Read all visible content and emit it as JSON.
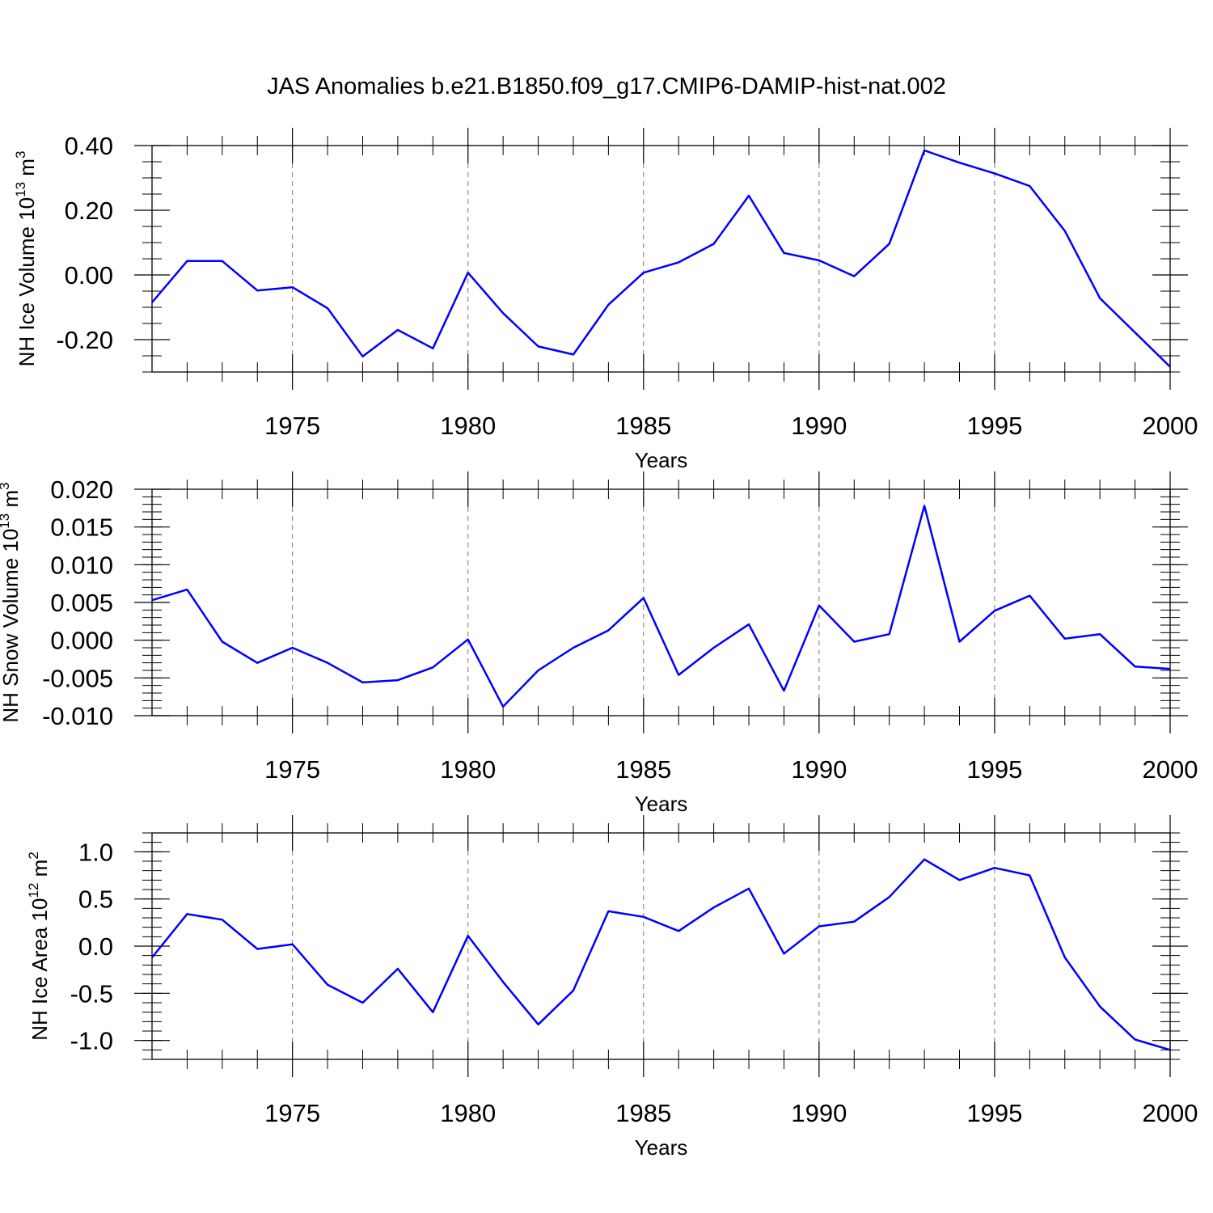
{
  "title": "JAS Anomalies b.e21.B1850.f09_g17.CMIP6-DAMIP-hist-nat.002",
  "line_color": "#0000ff",
  "chart_data": [
    {
      "type": "line",
      "ylabel": "NH Ice Volume 10",
      "ylabel_sup": "13",
      "ylabel_unit": "m",
      "ylabel_unit_sup": "3",
      "xlabel": "Years",
      "xlim": [
        1971,
        2000
      ],
      "ylim": [
        -0.3,
        0.4
      ],
      "y_ticks": [
        {
          "v": 0.4,
          "label": "0.40"
        },
        {
          "v": 0.2,
          "label": "0.20"
        },
        {
          "v": 0.0,
          "label": "0.00"
        },
        {
          "v": -0.2,
          "label": "-0.20"
        }
      ],
      "x_ticks": [
        {
          "v": 1975,
          "label": "1975"
        },
        {
          "v": 1980,
          "label": "1980"
        },
        {
          "v": 1985,
          "label": "1985"
        },
        {
          "v": 1990,
          "label": "1990"
        },
        {
          "v": 1995,
          "label": "1995"
        },
        {
          "v": 2000,
          "label": "2000"
        }
      ],
      "grid": "vertical dashed at major x ticks",
      "x": [
        1971,
        1972,
        1973,
        1974,
        1975,
        1976,
        1977,
        1978,
        1979,
        1980,
        1981,
        1982,
        1983,
        1984,
        1985,
        1986,
        1987,
        1988,
        1989,
        1990,
        1991,
        1992,
        1993,
        1994,
        1995,
        1996,
        1997,
        1998,
        1999,
        2000
      ],
      "y": [
        -0.085,
        0.043,
        0.043,
        -0.048,
        -0.038,
        -0.103,
        -0.252,
        -0.17,
        -0.227,
        0.007,
        -0.118,
        -0.221,
        -0.246,
        -0.092,
        0.007,
        0.039,
        0.096,
        0.245,
        0.068,
        0.045,
        -0.004,
        0.096,
        0.385,
        0.347,
        0.314,
        0.275,
        0.136,
        -0.072,
        -0.178,
        -0.284
      ]
    },
    {
      "type": "line",
      "ylabel": "NH Snow Volume 10",
      "ylabel_sup": "13",
      "ylabel_unit": "m",
      "ylabel_unit_sup": "3",
      "xlabel": "Years",
      "xlim": [
        1971,
        2000
      ],
      "ylim": [
        -0.01,
        0.02
      ],
      "y_ticks": [
        {
          "v": 0.02,
          "label": "0.020"
        },
        {
          "v": 0.015,
          "label": "0.015"
        },
        {
          "v": 0.01,
          "label": "0.010"
        },
        {
          "v": 0.005,
          "label": "0.005"
        },
        {
          "v": 0.0,
          "label": "0.000"
        },
        {
          "v": -0.005,
          "label": "-0.005"
        },
        {
          "v": -0.01,
          "label": "-0.010"
        }
      ],
      "x_ticks": [
        {
          "v": 1975,
          "label": "1975"
        },
        {
          "v": 1980,
          "label": "1980"
        },
        {
          "v": 1985,
          "label": "1985"
        },
        {
          "v": 1990,
          "label": "1990"
        },
        {
          "v": 1995,
          "label": "1995"
        },
        {
          "v": 2000,
          "label": "2000"
        }
      ],
      "grid": "vertical dashed at major x ticks",
      "x": [
        1971,
        1972,
        1973,
        1974,
        1975,
        1976,
        1977,
        1978,
        1979,
        1980,
        1981,
        1982,
        1983,
        1984,
        1985,
        1986,
        1987,
        1988,
        1989,
        1990,
        1991,
        1992,
        1993,
        1994,
        1995,
        1996,
        1997,
        1998,
        1999,
        2000
      ],
      "y": [
        0.0053,
        0.0067,
        -0.0002,
        -0.003,
        -0.001,
        -0.003,
        -0.0056,
        -0.0053,
        -0.0036,
        0.0001,
        -0.0088,
        -0.004,
        -0.001,
        0.0013,
        0.0056,
        -0.0046,
        -0.001,
        0.0021,
        -0.0067,
        0.0046,
        -0.0002,
        0.0008,
        0.0178,
        -0.0002,
        0.0039,
        0.0059,
        0.0002,
        0.0008,
        -0.0035,
        -0.0038
      ]
    },
    {
      "type": "line",
      "ylabel": "NH Ice Area 10",
      "ylabel_sup": "12",
      "ylabel_unit": "m",
      "ylabel_unit_sup": "2",
      "xlabel": "Years",
      "xlim": [
        1971,
        2000
      ],
      "ylim": [
        -1.2,
        1.2
      ],
      "y_ticks": [
        {
          "v": 1.0,
          "label": "1.0"
        },
        {
          "v": 0.5,
          "label": "0.5"
        },
        {
          "v": 0.0,
          "label": "0.0"
        },
        {
          "v": -0.5,
          "label": "-0.5"
        },
        {
          "v": -1.0,
          "label": "-1.0"
        }
      ],
      "x_ticks": [
        {
          "v": 1975,
          "label": "1975"
        },
        {
          "v": 1980,
          "label": "1980"
        },
        {
          "v": 1985,
          "label": "1985"
        },
        {
          "v": 1990,
          "label": "1990"
        },
        {
          "v": 1995,
          "label": "1995"
        },
        {
          "v": 2000,
          "label": "2000"
        }
      ],
      "grid": "vertical dashed at major x ticks",
      "x": [
        1971,
        1972,
        1973,
        1974,
        1975,
        1976,
        1977,
        1978,
        1979,
        1980,
        1981,
        1982,
        1983,
        1984,
        1985,
        1986,
        1987,
        1988,
        1989,
        1990,
        1991,
        1992,
        1993,
        1994,
        1995,
        1996,
        1997,
        1998,
        1999,
        2000
      ],
      "y": [
        -0.12,
        0.34,
        0.28,
        -0.03,
        0.02,
        -0.41,
        -0.6,
        -0.24,
        -0.7,
        0.11,
        -0.38,
        -0.83,
        -0.47,
        0.37,
        0.31,
        0.16,
        0.41,
        0.61,
        -0.08,
        0.21,
        0.26,
        0.52,
        0.92,
        0.7,
        0.83,
        0.75,
        -0.12,
        -0.64,
        -0.99,
        -1.1
      ]
    }
  ]
}
